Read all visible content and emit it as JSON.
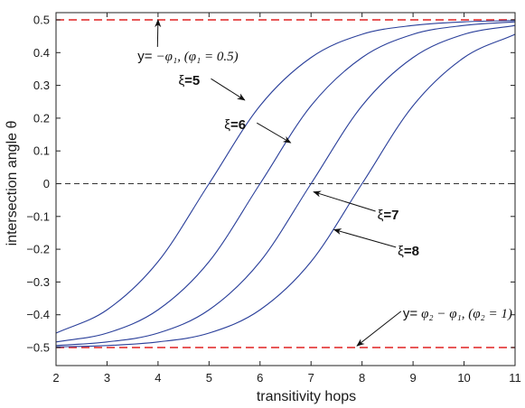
{
  "chart_data": {
    "type": "line",
    "xlabel": "transitivity hops",
    "ylabel": "intersection angle θ",
    "xlim": [
      2,
      11
    ],
    "ylim": [
      -0.55,
      0.52
    ],
    "xticks": [
      2,
      3,
      4,
      5,
      6,
      7,
      8,
      9,
      10,
      11
    ],
    "yticks": [
      -0.5,
      -0.4,
      -0.3,
      -0.2,
      -0.1,
      0,
      0.1,
      0.2,
      0.3,
      0.4,
      0.5
    ],
    "ytick_labels": [
      "−0.5",
      "−0.4",
      "−0.3",
      "−0.2",
      "−0.1",
      "0",
      "0.1",
      "0.2",
      "0.3",
      "0.4",
      "0.5"
    ],
    "grid": false,
    "series_color": "#2a3f9a",
    "series": [
      {
        "x": [
          2,
          3,
          4,
          5,
          6,
          7,
          8,
          9,
          10,
          11
        ],
        "y": [
          -0.456,
          -0.385,
          -0.238,
          0.0,
          0.238,
          0.385,
          0.456,
          0.483,
          0.494,
          0.498
        ]
      },
      {
        "x": [
          2,
          3,
          4,
          5,
          6,
          7,
          8,
          9,
          10,
          11
        ],
        "y": [
          -0.483,
          -0.456,
          -0.385,
          -0.238,
          0.0,
          0.238,
          0.385,
          0.456,
          0.483,
          0.494
        ]
      },
      {
        "x": [
          2,
          3,
          4,
          5,
          6,
          7,
          8,
          9,
          10,
          11
        ],
        "y": [
          -0.494,
          -0.483,
          -0.456,
          -0.385,
          -0.238,
          0.0,
          0.238,
          0.385,
          0.456,
          0.483
        ]
      },
      {
        "x": [
          2,
          3,
          4,
          5,
          6,
          7,
          8,
          9,
          10,
          11
        ],
        "y": [
          -0.498,
          -0.494,
          -0.483,
          -0.456,
          -0.385,
          -0.238,
          0.0,
          0.238,
          0.385,
          0.456
        ]
      }
    ],
    "reference_lines": [
      {
        "y": 0.5,
        "color": "#e02020",
        "style": "dashed"
      },
      {
        "y": -0.5,
        "color": "#e02020",
        "style": "dashed"
      },
      {
        "y": 0,
        "color": "#333333",
        "style": "dashed"
      }
    ],
    "annotations": [
      {
        "prefix": "y=",
        "math": "−φ₁, (φ₁ = 0.5)",
        "target": [
          4.0,
          0.5
        ],
        "text_at": [
          3.6,
          0.39
        ]
      },
      {
        "prefix": "ξ",
        "bold": "=5",
        "target": [
          5.7,
          0.255
        ],
        "text_at": [
          4.4,
          0.315
        ]
      },
      {
        "prefix": "ξ",
        "bold": "=6",
        "target": [
          6.6,
          0.125
        ],
        "text_at": [
          5.3,
          0.18
        ]
      },
      {
        "prefix": "ξ",
        "bold": "=7",
        "target": [
          7.05,
          -0.025
        ],
        "text_at": [
          8.3,
          -0.095
        ]
      },
      {
        "prefix": "ξ",
        "bold": "=8",
        "target": [
          7.45,
          -0.14
        ],
        "text_at": [
          8.7,
          -0.205
        ]
      },
      {
        "prefix": "y=",
        "math": "φ₂ − φ₁, (φ₂ = 1)",
        "target": [
          7.9,
          -0.495
        ],
        "text_at": [
          8.8,
          -0.395
        ]
      }
    ]
  }
}
